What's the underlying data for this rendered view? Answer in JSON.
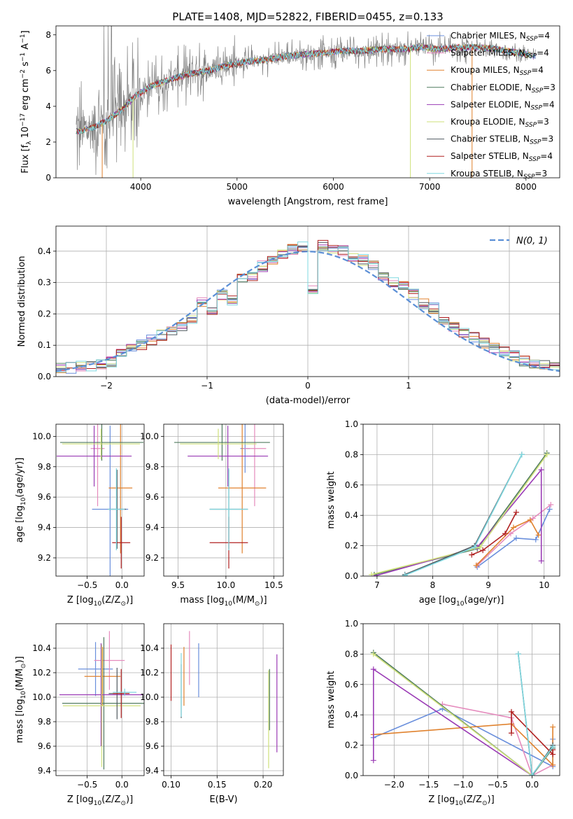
{
  "figure_title": "PLATE=1408, MJD=52822, FIBERID=0455, z=0.133",
  "colors": {
    "Chabrier MILES": "#6a8fdc",
    "Salpeter MILES": "#e58bbd",
    "Kroupa MILES": "#e0822e",
    "Chabrier ELODIE": "#4f7a5e",
    "Salpeter ELODIE": "#9a3bb5",
    "Kroupa ELODIE": "#cfe07a",
    "Chabrier STELIB": "#505a60",
    "Salpeter STELIB": "#b02020",
    "Kroupa STELIB": "#7fd8e0",
    "data": "#808080",
    "gaussian": "#5b8fd6"
  },
  "chart_data": [
    {
      "id": "spectrum",
      "type": "line",
      "title": "PLATE=1408, MJD=52822, FIBERID=0455, z=0.133",
      "xlabel": "wavelength [Angstrom, rest frame]",
      "ylabel": "Flux [f_λ 10^-17 erg cm^-2 s^-1 A^-1]",
      "xlim": [
        3120,
        8350
      ],
      "ylim": [
        0,
        8.5
      ],
      "xticks": [
        "4000",
        "5000",
        "6000",
        "7000",
        "8000"
      ],
      "yticks": [
        "0",
        "2",
        "4",
        "6",
        "8"
      ],
      "legend_position": "top-right",
      "legend": [
        {
          "model": "Chabrier MILES",
          "nssp": "4"
        },
        {
          "model": "Salpeter MILES",
          "nssp": "4"
        },
        {
          "model": "Kroupa MILES",
          "nssp": "4"
        },
        {
          "model": "Chabrier ELODIE",
          "nssp": "3"
        },
        {
          "model": "Salpeter ELODIE",
          "nssp": "4"
        },
        {
          "model": "Kroupa ELODIE",
          "nssp": "3"
        },
        {
          "model": "Chabrier STELIB",
          "nssp": "3"
        },
        {
          "model": "Salpeter STELIB",
          "nssp": "4"
        },
        {
          "model": "Kroupa STELIB",
          "nssp": "3"
        }
      ],
      "continuum": {
        "x": [
          3350,
          3500,
          3650,
          3800,
          3950,
          4100,
          4300,
          4500,
          4700,
          4900,
          5100,
          5300,
          5500,
          5700,
          5900,
          6100,
          6300,
          6500,
          6700,
          6900,
          7100,
          7300,
          7500,
          7700,
          7900,
          8100
        ],
        "y": [
          2.6,
          2.8,
          3.2,
          3.8,
          4.6,
          5.1,
          5.5,
          5.8,
          6.0,
          6.3,
          6.5,
          6.6,
          6.8,
          6.9,
          7.0,
          7.1,
          7.1,
          7.2,
          7.2,
          7.3,
          7.2,
          7.3,
          7.3,
          7.2,
          7.0,
          6.8
        ]
      }
    },
    {
      "id": "residual-histogram",
      "type": "line",
      "xlabel": "(data-model)/error",
      "ylabel": "Normed distribution",
      "xlim": [
        -2.5,
        2.5
      ],
      "ylim": [
        0,
        0.48
      ],
      "xticks": [
        "−2",
        "−1",
        "0",
        "1",
        "2"
      ],
      "yticks": [
        "0.0",
        "0.1",
        "0.2",
        "0.3",
        "0.4"
      ],
      "grid": true,
      "legend_position": "top-right",
      "gaussian_label": "N(0, 1)",
      "bins": [
        -2.5,
        -2.4,
        -2.3,
        -2.2,
        -2.1,
        -2.0,
        -1.9,
        -1.8,
        -1.7,
        -1.6,
        -1.5,
        -1.4,
        -1.3,
        -1.2,
        -1.1,
        -1.0,
        -0.9,
        -0.8,
        -0.7,
        -0.6,
        -0.5,
        -0.4,
        -0.3,
        -0.2,
        -0.1,
        0.0,
        0.1,
        0.2,
        0.3,
        0.4,
        0.5,
        0.6,
        0.7,
        0.8,
        0.9,
        1.0,
        1.1,
        1.2,
        1.3,
        1.4,
        1.5,
        1.6,
        1.7,
        1.8,
        1.9,
        2.0,
        2.1,
        2.2,
        2.3,
        2.4
      ],
      "heights": [
        0.025,
        0.028,
        0.032,
        0.035,
        0.042,
        0.048,
        0.078,
        0.087,
        0.102,
        0.118,
        0.133,
        0.148,
        0.163,
        0.178,
        0.238,
        0.21,
        0.262,
        0.24,
        0.31,
        0.32,
        0.352,
        0.37,
        0.39,
        0.405,
        0.412,
        0.28,
        0.418,
        0.41,
        0.4,
        0.385,
        0.372,
        0.352,
        0.32,
        0.3,
        0.29,
        0.262,
        0.232,
        0.218,
        0.178,
        0.162,
        0.143,
        0.128,
        0.108,
        0.092,
        0.08,
        0.066,
        0.05,
        0.044,
        0.036,
        0.032
      ]
    },
    {
      "id": "age-vs-z",
      "type": "scatter",
      "xlabel": "Z [log10(Z/Z⊙)]",
      "ylabel": "age [log10(age/yr)]",
      "xlim": [
        -0.95,
        0.32
      ],
      "ylim": [
        9.08,
        10.08
      ],
      "xticks": [
        "−0.5",
        "0.0"
      ],
      "yticks": [
        "9.2",
        "9.4",
        "9.6",
        "9.8",
        "10.0"
      ],
      "grid": true,
      "points": [
        {
          "model": "Chabrier MILES",
          "x": -0.17,
          "xerr": 0.26,
          "y": 9.52,
          "yerr": 0.55
        },
        {
          "model": "Salpeter MILES",
          "x": -0.35,
          "xerr": 0.1,
          "y": 9.92,
          "yerr": 0.38
        },
        {
          "model": "Kroupa MILES",
          "x": -0.02,
          "xerr": 0.17,
          "y": 9.66,
          "yerr": 0.43
        },
        {
          "model": "Chabrier ELODIE",
          "x": -0.29,
          "xerr": 0.6,
          "y": 9.96,
          "yerr": 0.12
        },
        {
          "model": "Salpeter ELODIE",
          "x": -0.4,
          "xerr": 0.54,
          "y": 9.87,
          "yerr": 0.2
        },
        {
          "model": "Kroupa ELODIE",
          "x": -0.3,
          "xerr": 0.56,
          "y": 9.95,
          "yerr": 0.1
        },
        {
          "model": "Chabrier STELIB",
          "x": -0.07,
          "xerr": 0.13,
          "y": 9.52,
          "yerr": 0.26
        },
        {
          "model": "Salpeter STELIB",
          "x": -0.01,
          "xerr": 0.13,
          "y": 9.3,
          "yerr": 0.17
        },
        {
          "model": "Kroupa STELIB",
          "x": -0.08,
          "xerr": 0.12,
          "y": 9.52,
          "yerr": 0.27
        }
      ]
    },
    {
      "id": "age-vs-mass",
      "type": "scatter",
      "xlabel": "mass [log10(M/M⊙)]",
      "ylabel": "",
      "xlim": [
        9.35,
        10.6
      ],
      "ylim": [
        9.08,
        10.08
      ],
      "xticks": [
        "9.5",
        "10.0",
        "10.5"
      ],
      "yticks": [
        "9.2",
        "9.4",
        "9.6",
        "9.8",
        "10.0"
      ],
      "grid": true,
      "points": [
        {
          "model": "Chabrier MILES",
          "x": 10.2,
          "xerr": 0.05,
          "y": 9.92,
          "yerr": 0.16
        },
        {
          "model": "Salpeter MILES",
          "x": 10.3,
          "xerr": 0.12,
          "y": 9.92,
          "yerr": 0.38
        },
        {
          "model": "Kroupa MILES",
          "x": 10.17,
          "xerr": 0.25,
          "y": 9.66,
          "yerr": 0.43
        },
        {
          "model": "Chabrier ELODIE",
          "x": 9.96,
          "xerr": 0.5,
          "y": 9.96,
          "yerr": 0.12
        },
        {
          "model": "Salpeter ELODIE",
          "x": 10.02,
          "xerr": 0.42,
          "y": 9.87,
          "yerr": 0.2
        },
        {
          "model": "Kroupa ELODIE",
          "x": 9.92,
          "xerr": 0.4,
          "y": 9.95,
          "yerr": 0.1
        },
        {
          "model": "Chabrier STELIB",
          "x": 10.03,
          "xerr": 0.2,
          "y": 9.52,
          "yerr": 0.26
        },
        {
          "model": "Salpeter STELIB",
          "x": 10.03,
          "xerr": 0.2,
          "y": 9.3,
          "yerr": 0.17
        },
        {
          "model": "Kroupa STELIB",
          "x": 10.03,
          "xerr": 0.2,
          "y": 9.52,
          "yerr": 0.27
        }
      ]
    },
    {
      "id": "weight-vs-age",
      "type": "line",
      "xlabel": "age [log10(age/yr)]",
      "ylabel": "mass weight",
      "xlim": [
        6.75,
        10.28
      ],
      "ylim": [
        0.0,
        1.0
      ],
      "xticks": [
        "7",
        "8",
        "9",
        "10"
      ],
      "yticks": [
        "0.0",
        "0.2",
        "0.4",
        "0.6",
        "0.8",
        "1.0"
      ],
      "grid": true,
      "series": [
        {
          "model": "Chabrier MILES",
          "x": [
            8.8,
            9.5,
            9.85,
            10.1
          ],
          "y": [
            0.06,
            0.25,
            0.24,
            0.44
          ]
        },
        {
          "model": "Salpeter MILES",
          "x": [
            8.8,
            9.4,
            9.8,
            10.12
          ],
          "y": [
            0.07,
            0.28,
            0.38,
            0.47
          ]
        },
        {
          "model": "Kroupa MILES",
          "x": [
            8.78,
            9.45,
            9.75,
            9.9
          ],
          "y": [
            0.07,
            0.32,
            0.37,
            0.27
          ]
        },
        {
          "model": "Chabrier ELODIE",
          "x": [
            6.95,
            8.8,
            10.05
          ],
          "y": [
            0.01,
            0.18,
            0.81
          ]
        },
        {
          "model": "Salpeter ELODIE",
          "x": [
            6.95,
            8.8,
            9.95,
            9.95
          ],
          "y": [
            0.0,
            0.19,
            0.7,
            0.1
          ]
        },
        {
          "model": "Kroupa ELODIE",
          "x": [
            6.9,
            8.85,
            10.05
          ],
          "y": [
            0.01,
            0.19,
            0.8
          ]
        },
        {
          "model": "Chabrier STELIB",
          "x": [
            7.5,
            8.75,
            9.6
          ],
          "y": [
            0.01,
            0.2,
            0.8
          ]
        },
        {
          "model": "Salpeter STELIB",
          "x": [
            8.7,
            8.9,
            9.3,
            9.5
          ],
          "y": [
            0.14,
            0.17,
            0.28,
            0.42
          ]
        },
        {
          "model": "Kroupa STELIB",
          "x": [
            7.5,
            8.75,
            9.6
          ],
          "y": [
            0.005,
            0.19,
            0.8
          ]
        }
      ]
    },
    {
      "id": "mass-vs-z",
      "type": "scatter",
      "xlabel": "Z [log10(Z/Z⊙)]",
      "ylabel": "mass [log10(M/M⊙)]",
      "xlim": [
        -0.95,
        0.32
      ],
      "ylim": [
        9.36,
        10.6
      ],
      "xticks": [
        "−0.5",
        "0.0"
      ],
      "yticks": [
        "9.4",
        "9.6",
        "9.8",
        "10.0",
        "10.2",
        "10.4"
      ],
      "grid": true,
      "points": [
        {
          "model": "Chabrier MILES",
          "x": -0.38,
          "xerr": 0.25,
          "y": 10.23,
          "yerr": 0.22
        },
        {
          "model": "Salpeter MILES",
          "x": -0.18,
          "xerr": 0.22,
          "y": 10.3,
          "yerr": 0.24
        },
        {
          "model": "Kroupa MILES",
          "x": -0.28,
          "xerr": 0.26,
          "y": 10.17,
          "yerr": 0.24
        },
        {
          "model": "Chabrier ELODIE",
          "x": -0.26,
          "xerr": 0.6,
          "y": 9.95,
          "yerr": 0.54
        },
        {
          "model": "Salpeter ELODIE",
          "x": -0.3,
          "xerr": 0.6,
          "y": 10.02,
          "yerr": 0.42
        },
        {
          "model": "Kroupa ELODIE",
          "x": -0.29,
          "xerr": 0.56,
          "y": 9.93,
          "yerr": 0.5
        },
        {
          "model": "Chabrier STELIB",
          "x": -0.07,
          "xerr": 0.12,
          "y": 10.03,
          "yerr": 0.21
        },
        {
          "model": "Salpeter STELIB",
          "x": -0.01,
          "xerr": 0.12,
          "y": 10.03,
          "yerr": 0.2
        },
        {
          "model": "Kroupa STELIB",
          "x": 0.04,
          "xerr": 0.17,
          "y": 10.04,
          "yerr": 0.03
        }
      ]
    },
    {
      "id": "mass-vs-ebv",
      "type": "scatter",
      "xlabel": "E(B-V)",
      "ylabel": "",
      "xlim": [
        0.092,
        0.222
      ],
      "ylim": [
        9.36,
        10.6
      ],
      "xticks": [
        "0.10",
        "0.15",
        "0.20"
      ],
      "yticks": [
        "9.4",
        "9.6",
        "9.8",
        "10.0",
        "10.2",
        "10.4"
      ],
      "grid": true,
      "points": [
        {
          "model": "Chabrier MILES",
          "x": 0.13,
          "y": 10.22,
          "yerr": 0.22
        },
        {
          "model": "Salpeter MILES",
          "x": 0.12,
          "y": 10.32,
          "yerr": 0.22
        },
        {
          "model": "Kroupa MILES",
          "x": 0.114,
          "y": 10.17,
          "yerr": 0.24
        },
        {
          "model": "Chabrier ELODIE",
          "x": 0.207,
          "y": 9.98,
          "yerr": 0.25
        },
        {
          "model": "Salpeter ELODIE",
          "x": 0.215,
          "y": 9.95,
          "yerr": 0.4
        },
        {
          "model": "Kroupa ELODIE",
          "x": 0.206,
          "y": 9.82,
          "yerr": 0.4
        },
        {
          "model": "Chabrier STELIB",
          "x": 0.111,
          "y": 10.05,
          "yerr": 0.22
        },
        {
          "model": "Salpeter STELIB",
          "x": 0.1,
          "y": 10.2,
          "yerr": 0.23
        },
        {
          "model": "Kroupa STELIB",
          "x": 0.111,
          "y": 10.1,
          "yerr": 0.26
        }
      ]
    },
    {
      "id": "weight-vs-z",
      "type": "line",
      "xlabel": "Z [log10(Z/Z⊙)]",
      "ylabel": "mass weight",
      "xlim": [
        -2.45,
        0.4
      ],
      "ylim": [
        0.0,
        1.0
      ],
      "xticks": [
        "−2.0",
        "−1.5",
        "−1.0",
        "−0.5",
        "0.0"
      ],
      "yticks": [
        "0.0",
        "0.2",
        "0.4",
        "0.6",
        "0.8",
        "1.0"
      ],
      "grid": true,
      "series": [
        {
          "model": "Chabrier MILES",
          "x": [
            -2.3,
            -1.3,
            0.3,
            0.3
          ],
          "y": [
            0.25,
            0.44,
            0.06,
            0.24
          ]
        },
        {
          "model": "Salpeter MILES",
          "x": [
            -1.3,
            -0.3,
            0.0,
            0.3
          ],
          "y": [
            0.47,
            0.38,
            0.0,
            0.07
          ]
        },
        {
          "model": "Kroupa MILES",
          "x": [
            -2.3,
            -0.3,
            0.3,
            0.3
          ],
          "y": [
            0.27,
            0.34,
            0.07,
            0.32
          ]
        },
        {
          "model": "Chabrier ELODIE",
          "x": [
            -2.3,
            0.0,
            0.3
          ],
          "y": [
            0.81,
            0.0,
            0.18
          ]
        },
        {
          "model": "Salpeter ELODIE",
          "x": [
            -2.3,
            -2.3,
            0.0,
            0.3
          ],
          "y": [
            0.1,
            0.7,
            0.0,
            0.19
          ]
        },
        {
          "model": "Kroupa ELODIE",
          "x": [
            -2.3,
            0.0,
            0.3
          ],
          "y": [
            0.8,
            0.0,
            0.19
          ]
        },
        {
          "model": "Chabrier STELIB",
          "x": [
            -0.2,
            0.0,
            0.3
          ],
          "y": [
            0.8,
            0.0,
            0.2
          ]
        },
        {
          "model": "Salpeter STELIB",
          "x": [
            -0.3,
            -0.3,
            0.3,
            0.3
          ],
          "y": [
            0.28,
            0.42,
            0.14,
            0.17
          ]
        },
        {
          "model": "Kroupa STELIB",
          "x": [
            -0.2,
            0.0,
            0.3
          ],
          "y": [
            0.8,
            0.005,
            0.19
          ]
        }
      ]
    }
  ]
}
